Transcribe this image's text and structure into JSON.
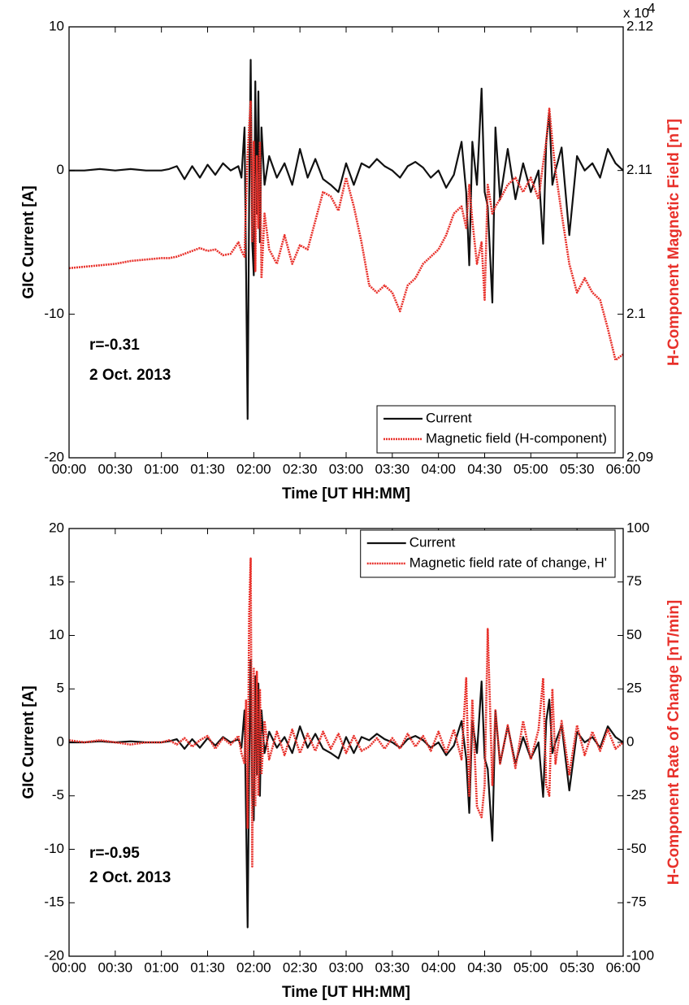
{
  "chart_data": [
    {
      "type": "line",
      "x": [
        "00:00",
        "00:10",
        "00:20",
        "00:30",
        "00:40",
        "00:50",
        "01:00",
        "01:05",
        "01:10",
        "01:15",
        "01:20",
        "01:25",
        "01:30",
        "01:35",
        "01:40",
        "01:45",
        "01:50",
        "01:52",
        "01:54",
        "01:55",
        "01:56",
        "01:57",
        "01:58",
        "01:59",
        "02:00",
        "02:01",
        "02:02",
        "02:03",
        "02:04",
        "02:05",
        "02:07",
        "02:10",
        "02:15",
        "02:20",
        "02:25",
        "02:30",
        "02:35",
        "02:40",
        "02:45",
        "02:50",
        "02:55",
        "03:00",
        "03:05",
        "03:10",
        "03:15",
        "03:20",
        "03:25",
        "03:30",
        "03:35",
        "03:40",
        "03:45",
        "03:50",
        "03:55",
        "04:00",
        "04:05",
        "04:10",
        "04:15",
        "04:18",
        "04:20",
        "04:22",
        "04:25",
        "04:28",
        "04:30",
        "04:32",
        "04:35",
        "04:37",
        "04:40",
        "04:45",
        "04:50",
        "04:55",
        "05:00",
        "05:05",
        "05:08",
        "05:10",
        "05:12",
        "05:14",
        "05:16",
        "05:20",
        "05:25",
        "05:30",
        "05:35",
        "05:40",
        "05:45",
        "05:50",
        "05:55",
        "06:00"
      ],
      "xlim": [
        "00:00",
        "06:00"
      ],
      "xticks": [
        "00:00",
        "00:30",
        "01:00",
        "01:30",
        "02:00",
        "02:30",
        "03:00",
        "03:30",
        "04:00",
        "04:30",
        "05:00",
        "05:30",
        "06:00"
      ],
      "ylim": [
        -20,
        10
      ],
      "yticks": [
        -20,
        -10,
        0,
        10
      ],
      "y2lim": [
        2.09,
        2.12
      ],
      "y2ticks": [
        2.09,
        2.1,
        2.11,
        2.12
      ],
      "y2_scale_label": "x 10",
      "y2_scale_exponent": "4",
      "xlabel": "Time [UT HH:MM]",
      "ylabel": "GIC Current [A]",
      "y2label": "H-Component Magnetic Field [nT]",
      "y2label_color": "#e8302a",
      "annotations": [
        "r=-0.31",
        "2 Oct. 2013"
      ],
      "legend": "lower right",
      "series": [
        {
          "name": "Current",
          "color": "#111111",
          "style": "solid",
          "values": [
            0,
            0,
            0.1,
            0,
            0.1,
            0,
            0,
            0.1,
            0.3,
            -0.6,
            0.3,
            -0.5,
            0.4,
            -0.3,
            0.5,
            0,
            0.3,
            -0.5,
            3,
            -7,
            -17.3,
            -2,
            7.7,
            -5,
            -7.3,
            6.2,
            -3,
            5.5,
            -5,
            3,
            -1,
            1,
            -0.5,
            0.5,
            -1,
            1.5,
            -0.5,
            0.8,
            -0.6,
            -1,
            -1.5,
            0.5,
            -1,
            0.5,
            0.2,
            0.8,
            0.3,
            0,
            -0.5,
            0.3,
            0.6,
            0.2,
            -0.5,
            0,
            -1.2,
            -0.3,
            2,
            -1.5,
            -6.6,
            2,
            -1,
            5.7,
            -1.5,
            -2.5,
            -9.2,
            3,
            -2,
            1.5,
            -2,
            0.5,
            -1.5,
            0,
            -5.1,
            2,
            4,
            -1,
            0,
            1.6,
            -4.5,
            1,
            0,
            0.5,
            -0.5,
            1.5,
            0.5,
            0
          ]
        },
        {
          "name": "Magnetic field (H-component)",
          "color": "#e8302a",
          "style": "dotted",
          "axis": "y2",
          "values": [
            2.1032,
            2.1033,
            2.1034,
            2.1035,
            2.1037,
            2.1038,
            2.1039,
            2.1039,
            2.104,
            2.1042,
            2.1044,
            2.1046,
            2.1044,
            2.1045,
            2.1041,
            2.1042,
            2.105,
            2.1044,
            2.104,
            2.108,
            2.111,
            2.113,
            2.1148,
            2.105,
            2.112,
            2.103,
            2.111,
            2.106,
            2.112,
            2.1025,
            2.107,
            2.1045,
            2.1035,
            2.1055,
            2.1035,
            2.1048,
            2.1045,
            2.1065,
            2.1085,
            2.1082,
            2.1072,
            2.1095,
            2.1075,
            2.105,
            2.102,
            2.1015,
            2.102,
            2.1015,
            2.1002,
            2.102,
            2.1025,
            2.1035,
            2.104,
            2.1045,
            2.1055,
            2.107,
            2.1075,
            2.106,
            2.109,
            2.1065,
            2.1035,
            2.105,
            2.101,
            2.109,
            2.107,
            2.1075,
            2.108,
            2.109,
            2.1095,
            2.1085,
            2.1095,
            2.108,
            2.1105,
            2.112,
            2.1143,
            2.112,
            2.11,
            2.107,
            2.1035,
            2.1015,
            2.1025,
            2.1015,
            2.101,
            2.099,
            2.0968,
            2.0972
          ]
        }
      ]
    },
    {
      "type": "line",
      "x": [
        "00:00",
        "00:10",
        "00:20",
        "00:30",
        "00:40",
        "00:50",
        "01:00",
        "01:05",
        "01:10",
        "01:15",
        "01:20",
        "01:25",
        "01:30",
        "01:35",
        "01:40",
        "01:45",
        "01:50",
        "01:52",
        "01:54",
        "01:55",
        "01:56",
        "01:57",
        "01:58",
        "01:59",
        "02:00",
        "02:01",
        "02:02",
        "02:03",
        "02:04",
        "02:05",
        "02:07",
        "02:10",
        "02:15",
        "02:20",
        "02:25",
        "02:30",
        "02:35",
        "02:40",
        "02:45",
        "02:50",
        "02:55",
        "03:00",
        "03:05",
        "03:10",
        "03:15",
        "03:20",
        "03:25",
        "03:30",
        "03:35",
        "03:40",
        "03:45",
        "03:50",
        "03:55",
        "04:00",
        "04:05",
        "04:10",
        "04:15",
        "04:18",
        "04:20",
        "04:22",
        "04:25",
        "04:28",
        "04:30",
        "04:32",
        "04:35",
        "04:37",
        "04:40",
        "04:45",
        "04:50",
        "04:55",
        "05:00",
        "05:05",
        "05:08",
        "05:10",
        "05:12",
        "05:14",
        "05:16",
        "05:20",
        "05:25",
        "05:30",
        "05:35",
        "05:40",
        "05:45",
        "05:50",
        "05:55",
        "06:00"
      ],
      "xlim": [
        "00:00",
        "06:00"
      ],
      "xticks": [
        "00:00",
        "00:30",
        "01:00",
        "01:30",
        "02:00",
        "02:30",
        "03:00",
        "03:30",
        "04:00",
        "04:30",
        "05:00",
        "05:30",
        "06:00"
      ],
      "ylim": [
        -20,
        20
      ],
      "yticks": [
        -20,
        -15,
        -10,
        -5,
        0,
        5,
        10,
        15,
        20
      ],
      "y2lim": [
        -100,
        100
      ],
      "y2ticks": [
        -100,
        -75,
        -50,
        -25,
        0,
        25,
        50,
        75,
        100
      ],
      "xlabel": "Time [UT HH:MM]",
      "ylabel": "GIC Current [A]",
      "y2label": "H-Component Rate of Change [nT/min]",
      "y2label_color": "#e8302a",
      "annotations": [
        "r=-0.95",
        "2 Oct. 2013"
      ],
      "legend": "upper right",
      "series": [
        {
          "name": "Current",
          "color": "#111111",
          "style": "solid",
          "values": [
            0,
            0,
            0.1,
            0,
            0.1,
            0,
            0,
            0.1,
            0.3,
            -0.6,
            0.3,
            -0.5,
            0.4,
            -0.3,
            0.5,
            0,
            0.3,
            -0.5,
            3,
            -7,
            -17.3,
            -2,
            7.7,
            -5,
            -7.3,
            6.2,
            -3,
            5.5,
            -5,
            3,
            -1,
            1,
            -0.5,
            0.5,
            -1,
            1.5,
            -0.5,
            0.8,
            -0.6,
            -1,
            -1.5,
            0.5,
            -1,
            0.5,
            0.2,
            0.8,
            0.3,
            0,
            -0.5,
            0.3,
            0.6,
            0.2,
            -0.5,
            0,
            -1.2,
            -0.3,
            2,
            -1.5,
            -6.6,
            2,
            -1,
            5.7,
            -1.5,
            -2.5,
            -9.2,
            3,
            -2,
            1.5,
            -2,
            0.5,
            -1.5,
            0,
            -5.1,
            2,
            4,
            -1,
            0,
            1.6,
            -4.5,
            1,
            0,
            0.5,
            -0.5,
            1.5,
            0.5,
            0
          ]
        },
        {
          "name": "Magnetic field rate of change, H'",
          "color": "#e8302a",
          "style": "dotted",
          "axis": "y2",
          "values": [
            1,
            0,
            1,
            0,
            -1,
            0,
            0,
            1,
            -1,
            2,
            -2,
            1,
            3,
            -3,
            2,
            -1,
            3,
            -5,
            -10,
            20,
            -40,
            60,
            86,
            -58,
            35,
            -30,
            33,
            -25,
            25,
            -15,
            10,
            -8,
            5,
            -6,
            6,
            -5,
            4,
            -4,
            5,
            -3,
            4,
            -5,
            3,
            -4,
            -2,
            2,
            -3,
            2,
            -3,
            4,
            -2,
            3,
            -4,
            5,
            -5,
            6,
            -8,
            30,
            -25,
            20,
            -30,
            -35,
            -20,
            53,
            -20,
            15,
            -10,
            8,
            -12,
            10,
            -8,
            6,
            30,
            -20,
            -25,
            25,
            -10,
            10,
            -15,
            8,
            -6,
            5,
            -4,
            6,
            -3,
            0
          ]
        }
      ]
    }
  ]
}
